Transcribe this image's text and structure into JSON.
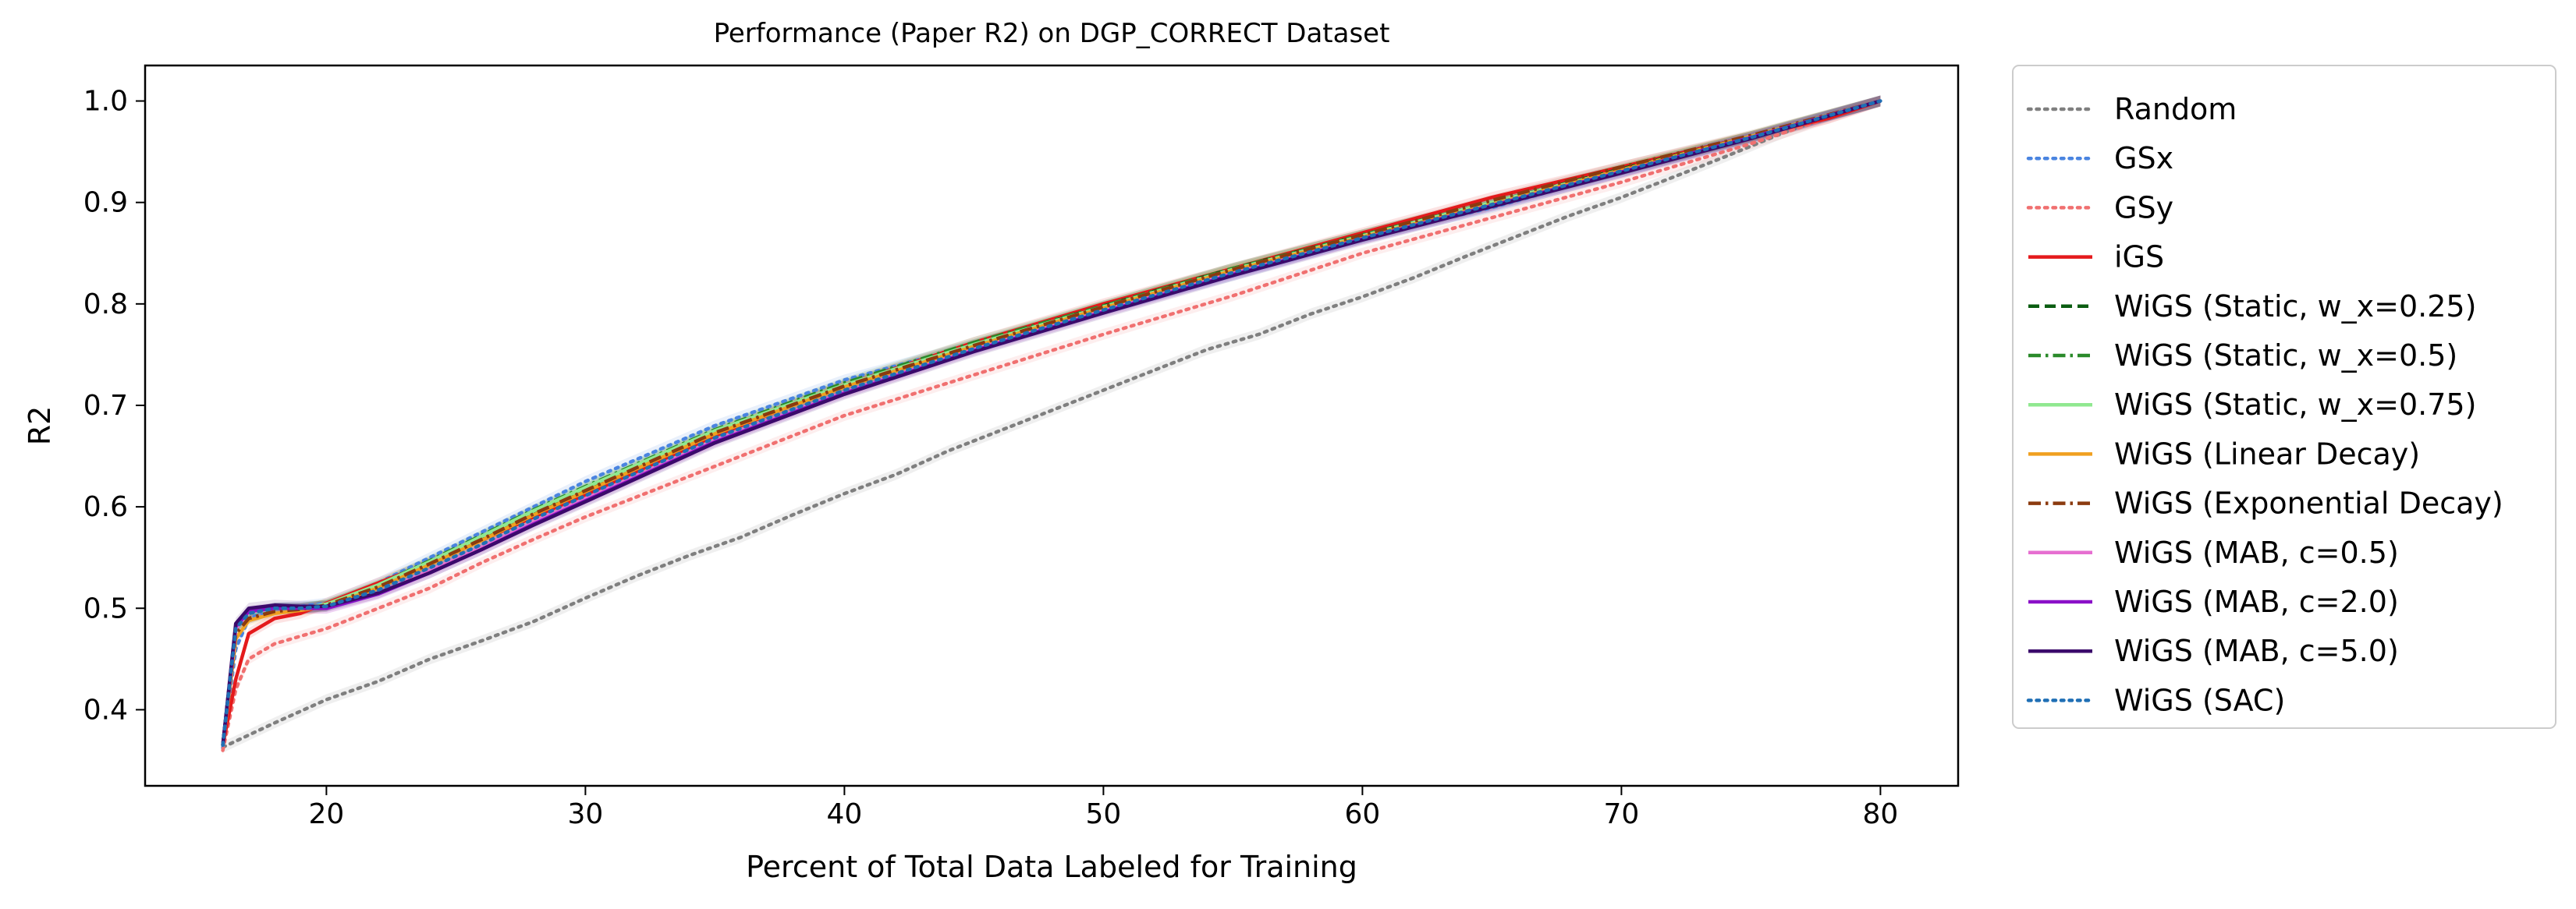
{
  "chart_data": {
    "type": "line",
    "title": "Performance (Paper R2) on DGP_CORRECT Dataset",
    "xlabel": "Percent of Total Data Labeled for Training",
    "ylabel": "R2",
    "xlim": [
      13,
      83
    ],
    "ylim": [
      0.325,
      1.035
    ],
    "xticks": [
      20,
      30,
      40,
      50,
      60,
      70,
      80
    ],
    "yticks": [
      0.4,
      0.5,
      0.6,
      0.7,
      0.8,
      0.9,
      1.0
    ],
    "xtick_labels": [
      "20",
      "30",
      "40",
      "50",
      "60",
      "70",
      "80"
    ],
    "ytick_labels": [
      "0.4",
      "0.5",
      "0.6",
      "0.7",
      "0.8",
      "0.9",
      "1.0"
    ],
    "grid": false,
    "legend_position": "outside-right",
    "series": [
      {
        "name": "Random",
        "color": "#7f7f7f",
        "style": "dotted",
        "band": true,
        "x": [
          16,
          18,
          20,
          22,
          24,
          26,
          28,
          30,
          32,
          34,
          36,
          38,
          40,
          42,
          44,
          46,
          48,
          50,
          52,
          54,
          56,
          58,
          60,
          62,
          64,
          66,
          68,
          70,
          72,
          74,
          76,
          78,
          80
        ],
        "y": [
          0.363,
          0.387,
          0.41,
          0.428,
          0.45,
          0.468,
          0.487,
          0.51,
          0.532,
          0.552,
          0.57,
          0.592,
          0.613,
          0.632,
          0.655,
          0.675,
          0.695,
          0.715,
          0.735,
          0.755,
          0.77,
          0.79,
          0.807,
          0.826,
          0.847,
          0.867,
          0.887,
          0.905,
          0.925,
          0.945,
          0.966,
          0.985,
          1.0
        ]
      },
      {
        "name": "GSx",
        "color": "#4a84e0",
        "style": "dotted",
        "band": true,
        "x": [
          16,
          16.5,
          17,
          18,
          19,
          20,
          22,
          24,
          26,
          28,
          30,
          35,
          40,
          45,
          50,
          55,
          60,
          65,
          70,
          75,
          80
        ],
        "y": [
          0.362,
          0.46,
          0.49,
          0.5,
          0.502,
          0.505,
          0.525,
          0.55,
          0.575,
          0.6,
          0.625,
          0.68,
          0.725,
          0.76,
          0.795,
          0.828,
          0.865,
          0.895,
          0.93,
          0.965,
          1.0
        ]
      },
      {
        "name": "GSy",
        "color": "#f07070",
        "style": "dotted",
        "band": true,
        "x": [
          16,
          16.5,
          17,
          18,
          20,
          22,
          24,
          26,
          28,
          30,
          35,
          40,
          45,
          50,
          55,
          60,
          65,
          70,
          75,
          80
        ],
        "y": [
          0.36,
          0.42,
          0.45,
          0.465,
          0.48,
          0.5,
          0.52,
          0.545,
          0.568,
          0.59,
          0.64,
          0.69,
          0.73,
          0.77,
          0.808,
          0.85,
          0.885,
          0.92,
          0.958,
          1.0
        ]
      },
      {
        "name": "iGS",
        "color": "#e41a1c",
        "style": "solid",
        "band": true,
        "x": [
          16,
          16.5,
          17,
          18,
          19,
          20,
          21,
          22,
          24,
          26,
          28,
          30,
          35,
          40,
          45,
          50,
          55,
          60,
          65,
          70,
          75,
          78,
          80
        ],
        "y": [
          0.365,
          0.43,
          0.475,
          0.49,
          0.495,
          0.505,
          0.515,
          0.525,
          0.545,
          0.567,
          0.59,
          0.612,
          0.67,
          0.72,
          0.762,
          0.8,
          0.835,
          0.87,
          0.905,
          0.935,
          0.965,
          0.983,
          1.0
        ]
      },
      {
        "name": "WiGS (Static, w_x=0.25)",
        "color": "#0b5d12",
        "style": "dashed",
        "band": true,
        "x": [
          16,
          16.5,
          17,
          18,
          19,
          20,
          22,
          24,
          26,
          28,
          30,
          35,
          40,
          45,
          50,
          55,
          60,
          65,
          70,
          75,
          80
        ],
        "y": [
          0.365,
          0.48,
          0.495,
          0.5,
          0.5,
          0.503,
          0.522,
          0.545,
          0.57,
          0.595,
          0.618,
          0.675,
          0.72,
          0.76,
          0.798,
          0.835,
          0.868,
          0.9,
          0.933,
          0.965,
          1.0
        ]
      },
      {
        "name": "WiGS (Static, w_x=0.5)",
        "color": "#2a8a2a",
        "style": "dashdot",
        "band": true,
        "x": [
          16,
          16.5,
          17,
          18,
          19,
          20,
          22,
          24,
          26,
          28,
          30,
          35,
          40,
          45,
          50,
          55,
          60,
          65,
          70,
          75,
          80
        ],
        "y": [
          0.365,
          0.48,
          0.495,
          0.5,
          0.5,
          0.503,
          0.523,
          0.547,
          0.572,
          0.597,
          0.62,
          0.676,
          0.722,
          0.762,
          0.798,
          0.835,
          0.868,
          0.9,
          0.932,
          0.965,
          1.0
        ]
      },
      {
        "name": "WiGS (Static, w_x=0.75)",
        "color": "#90e890",
        "style": "solid",
        "band": true,
        "x": [
          16,
          16.5,
          17,
          18,
          19,
          20,
          22,
          24,
          26,
          28,
          30,
          35,
          40,
          45,
          50,
          55,
          60,
          65,
          70,
          75,
          80
        ],
        "y": [
          0.365,
          0.48,
          0.495,
          0.5,
          0.5,
          0.504,
          0.523,
          0.546,
          0.571,
          0.596,
          0.619,
          0.675,
          0.72,
          0.76,
          0.797,
          0.834,
          0.867,
          0.9,
          0.932,
          0.965,
          1.0
        ]
      },
      {
        "name": "WiGS (Linear Decay)",
        "color": "#f0a020",
        "style": "solid",
        "band": true,
        "x": [
          16,
          16.5,
          17,
          18,
          19,
          20,
          22,
          24,
          26,
          28,
          30,
          35,
          40,
          45,
          50,
          55,
          60,
          65,
          70,
          75,
          80
        ],
        "y": [
          0.365,
          0.47,
          0.488,
          0.495,
          0.498,
          0.502,
          0.52,
          0.543,
          0.567,
          0.592,
          0.615,
          0.672,
          0.718,
          0.758,
          0.796,
          0.833,
          0.866,
          0.898,
          0.932,
          0.965,
          1.0
        ]
      },
      {
        "name": "WiGS (Exponential Decay)",
        "color": "#8b3a0f",
        "style": "dashdot",
        "band": true,
        "x": [
          16,
          16.5,
          17,
          18,
          19,
          20,
          22,
          24,
          26,
          28,
          30,
          35,
          40,
          45,
          50,
          55,
          60,
          65,
          70,
          75,
          80
        ],
        "y": [
          0.365,
          0.475,
          0.49,
          0.497,
          0.499,
          0.503,
          0.521,
          0.544,
          0.568,
          0.593,
          0.616,
          0.673,
          0.719,
          0.759,
          0.797,
          0.834,
          0.868,
          0.902,
          0.935,
          0.966,
          1.0
        ]
      },
      {
        "name": "WiGS (MAB, c=0.5)",
        "color": "#e66fd1",
        "style": "solid",
        "band": true,
        "x": [
          16,
          16.5,
          17,
          18,
          19,
          20,
          22,
          24,
          26,
          28,
          30,
          35,
          40,
          45,
          50,
          55,
          60,
          65,
          70,
          75,
          80
        ],
        "y": [
          0.365,
          0.48,
          0.496,
          0.5,
          0.5,
          0.5,
          0.515,
          0.537,
          0.56,
          0.585,
          0.608,
          0.665,
          0.713,
          0.755,
          0.793,
          0.83,
          0.864,
          0.897,
          0.93,
          0.964,
          1.0
        ]
      },
      {
        "name": "WiGS (MAB, c=2.0)",
        "color": "#8a10c8",
        "style": "solid",
        "band": true,
        "x": [
          16,
          16.5,
          17,
          18,
          19,
          20,
          22,
          24,
          26,
          28,
          30,
          35,
          40,
          45,
          50,
          55,
          60,
          65,
          70,
          75,
          80
        ],
        "y": [
          0.365,
          0.482,
          0.497,
          0.5,
          0.5,
          0.5,
          0.514,
          0.535,
          0.558,
          0.583,
          0.606,
          0.664,
          0.712,
          0.754,
          0.792,
          0.829,
          0.864,
          0.897,
          0.93,
          0.964,
          1.0
        ]
      },
      {
        "name": "WiGS (MAB, c=5.0)",
        "color": "#3b0a6b",
        "style": "solid",
        "band": true,
        "x": [
          16,
          16.5,
          17,
          18,
          19,
          20,
          22,
          24,
          26,
          28,
          30,
          35,
          40,
          45,
          50,
          55,
          60,
          65,
          70,
          75,
          80
        ],
        "y": [
          0.365,
          0.485,
          0.5,
          0.503,
          0.502,
          0.502,
          0.515,
          0.535,
          0.558,
          0.582,
          0.605,
          0.663,
          0.711,
          0.753,
          0.791,
          0.828,
          0.863,
          0.896,
          0.929,
          0.963,
          1.0
        ]
      },
      {
        "name": "WiGS (SAC)",
        "color": "#1f6fb5",
        "style": "dotted",
        "band": true,
        "x": [
          16,
          16.5,
          17,
          18,
          19,
          20,
          22,
          24,
          26,
          28,
          30,
          35,
          40,
          45,
          50,
          55,
          60,
          65,
          70,
          75,
          80
        ],
        "y": [
          0.365,
          0.48,
          0.495,
          0.5,
          0.5,
          0.502,
          0.518,
          0.54,
          0.563,
          0.588,
          0.611,
          0.668,
          0.715,
          0.756,
          0.794,
          0.831,
          0.865,
          0.898,
          0.931,
          0.964,
          1.0
        ]
      }
    ]
  }
}
